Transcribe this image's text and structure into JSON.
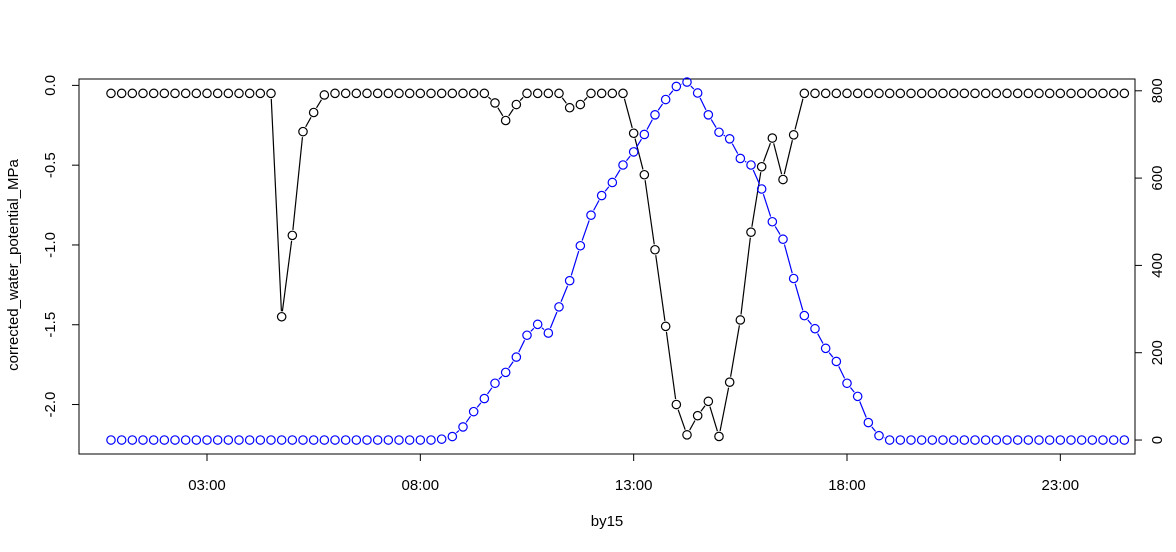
{
  "chart_data": {
    "type": "line",
    "xlabel": "by15",
    "ylabel": "corrected_water_potential_MPa",
    "x_tick_labels": [
      "03:00",
      "08:00",
      "13:00",
      "18:00",
      "23:00"
    ],
    "x_tick_hours": [
      3,
      8,
      13,
      18,
      23
    ],
    "x_start_hour": 0.75,
    "x_step_hours": 0.25,
    "xlim_hours": [
      0.0,
      24.75
    ],
    "y_left_ticks": [
      0.0,
      -0.5,
      -1.0,
      -1.5,
      -2.0
    ],
    "y_left_tick_labels": [
      "0.0",
      "-0.5",
      "-1.0",
      "-1.5",
      "-2.0"
    ],
    "y_left_lim": [
      -2.31,
      0.04
    ],
    "y_right_ticks": [
      0,
      200,
      400,
      600,
      800
    ],
    "y_right_tick_labels": [
      "0",
      "200",
      "400",
      "600",
      "800"
    ],
    "y_right_lim": [
      -32,
      827
    ],
    "grid": false,
    "legend": "none",
    "colors": {
      "water_potential": "#000000",
      "right_axis_series": "#0000ff"
    },
    "series": [
      {
        "axis": "left",
        "values": [
          -0.05,
          -0.05,
          -0.05,
          -0.05,
          -0.05,
          -0.05,
          -0.05,
          -0.05,
          -0.05,
          -0.05,
          -0.05,
          -0.05,
          -0.05,
          -0.05,
          -0.05,
          -0.05,
          -1.45,
          -0.94,
          -0.29,
          -0.17,
          -0.06,
          -0.05,
          -0.05,
          -0.05,
          -0.05,
          -0.05,
          -0.05,
          -0.05,
          -0.05,
          -0.05,
          -0.05,
          -0.05,
          -0.05,
          -0.05,
          -0.05,
          -0.05,
          -0.11,
          -0.22,
          -0.12,
          -0.05,
          -0.05,
          -0.05,
          -0.05,
          -0.14,
          -0.12,
          -0.05,
          -0.05,
          -0.05,
          -0.05,
          -0.3,
          -0.56,
          -1.03,
          -1.51,
          -2.0,
          -2.19,
          -2.07,
          -1.98,
          -2.2,
          -1.86,
          -1.47,
          -0.92,
          -0.51,
          -0.33,
          -0.59,
          -0.31,
          -0.05,
          -0.05,
          -0.05,
          -0.05,
          -0.05,
          -0.05,
          -0.05,
          -0.05,
          -0.05,
          -0.05,
          -0.05,
          -0.05,
          -0.05,
          -0.05,
          -0.05,
          -0.05,
          -0.05,
          -0.05,
          -0.05,
          -0.05,
          -0.05,
          -0.05,
          -0.05,
          -0.05,
          -0.05,
          -0.05,
          -0.05,
          -0.05,
          -0.05,
          -0.05,
          -0.05
        ]
      },
      {
        "axis": "right",
        "values": [
          0,
          0,
          0,
          0,
          0,
          0,
          0,
          0,
          0,
          0,
          0,
          0,
          0,
          0,
          0,
          0,
          0,
          0,
          0,
          0,
          0,
          0,
          0,
          0,
          0,
          0,
          0,
          0,
          0,
          0,
          0,
          2,
          8,
          30,
          65,
          95,
          130,
          155,
          190,
          240,
          265,
          245,
          305,
          365,
          445,
          515,
          560,
          590,
          630,
          660,
          700,
          745,
          780,
          810,
          820,
          795,
          745,
          705,
          690,
          645,
          630,
          575,
          500,
          460,
          370,
          285,
          255,
          210,
          180,
          130,
          100,
          40,
          10,
          0,
          0,
          0,
          0,
          0,
          0,
          0,
          0,
          0,
          0,
          0,
          0,
          0,
          0,
          0,
          0,
          0,
          0,
          0,
          0,
          0,
          0,
          0
        ]
      }
    ]
  }
}
